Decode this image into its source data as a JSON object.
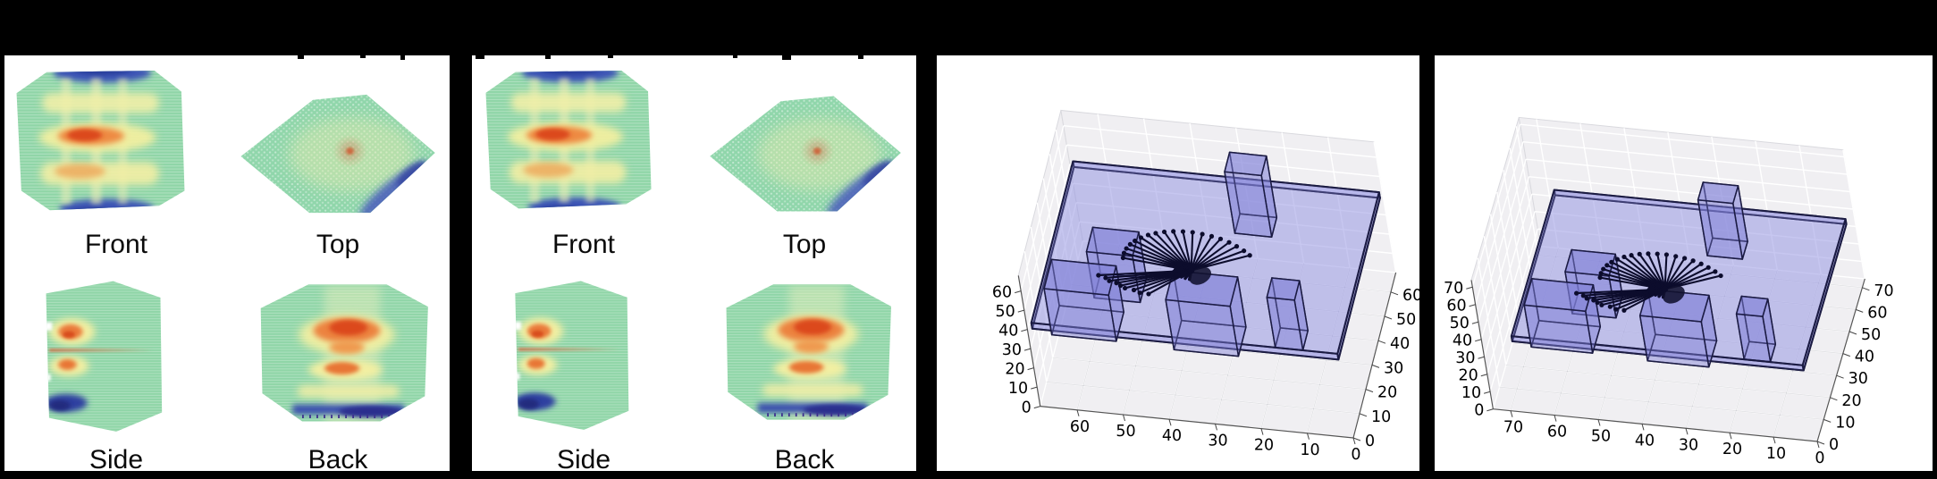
{
  "strip": {
    "background": "#000000",
    "panels": [
      {
        "id": "multiview-a",
        "kind": "orthographic-heatmap-views",
        "views": [
          {
            "label": "Front"
          },
          {
            "label": "Top"
          },
          {
            "label": "Side"
          },
          {
            "label": "Back"
          }
        ]
      },
      {
        "id": "multiview-b",
        "kind": "orthographic-heatmap-views",
        "views": [
          {
            "label": "Front"
          },
          {
            "label": "Top"
          },
          {
            "label": "Side"
          },
          {
            "label": "Back"
          }
        ]
      },
      {
        "id": "scene-a",
        "kind": "3d-room-scene"
      },
      {
        "id": "scene-b",
        "kind": "3d-room-scene"
      }
    ]
  },
  "palette": {
    "heat_base_green": "#8fd5a7",
    "heat_yellow": "#f1efa6",
    "heat_orange": "#ec8340",
    "heat_red_core": "#dc4a1e",
    "heat_blue": "#3c55b6",
    "heat_dark_blue": "#2b3f9d",
    "room_plane_fill": "#8e8ee0",
    "room_box_fill": "#7f7fd8",
    "room_edge": "#18183f",
    "pane_gray": "#f0eff2",
    "grid_white": "#ffffff",
    "ray_black": "#0c0c2c"
  },
  "chart_data": [
    {
      "type": "heatmap",
      "panel": "multiview-a",
      "views": [
        "Front",
        "Top",
        "Side",
        "Back"
      ],
      "description": "voxel point-cloud heatmap of a cuboid shown from four orthographic views; green base, yellow/orange/red hot bands, blue extremes at top and bottom edges"
    },
    {
      "type": "heatmap",
      "panel": "multiview-b",
      "views": [
        "Front",
        "Top",
        "Side",
        "Back"
      ],
      "description": "second sample of the same four-view voxel heatmap"
    },
    {
      "type": "scatter",
      "panel": "scene-a",
      "projection": "3d",
      "grid": true,
      "x_ticks": [
        60,
        50,
        40,
        30,
        20,
        10,
        0
      ],
      "y_ticks": [
        0,
        10,
        20,
        30,
        40,
        50,
        60
      ],
      "z_ticks": [
        0,
        10,
        20,
        30,
        40,
        50,
        60
      ],
      "xlim": [
        0,
        68
      ],
      "ylim": [
        0,
        68
      ],
      "zlim": [
        0,
        68
      ],
      "slab": {
        "x": [
          0.5,
          67
        ],
        "y": [
          0.5,
          67
        ],
        "z": [
          40,
          43
        ]
      },
      "boxes": [
        {
          "x": [
            22,
            30
          ],
          "y": [
            50,
            58
          ],
          "z": [
            36,
            68
          ]
        },
        {
          "x": [
            48,
            58
          ],
          "y": [
            26,
            36
          ],
          "z": [
            26,
            50
          ]
        },
        {
          "x": [
            26,
            40
          ],
          "y": [
            16,
            28
          ],
          "z": [
            16,
            42
          ]
        },
        {
          "x": [
            12,
            18
          ],
          "y": [
            18,
            26
          ],
          "z": [
            20,
            46
          ]
        },
        {
          "x": [
            52,
            66
          ],
          "y": [
            14,
            26
          ],
          "z": [
            20,
            44
          ]
        }
      ],
      "rays": {
        "origin": [
          36,
          28,
          43
        ],
        "fan_up": [
          [
            14.9,
            1.3,
            1.3
          ],
          [
            14.6,
            1.7,
            3.4
          ],
          [
            14.0,
            2.1,
            5.4
          ],
          [
            13.1,
            2.5,
            7.3
          ],
          [
            12.0,
            2.8,
            9.0
          ],
          [
            10.6,
            3.1,
            10.6
          ],
          [
            9.0,
            3.4,
            12.0
          ],
          [
            7.3,
            3.6,
            13.1
          ],
          [
            5.4,
            3.8,
            14.0
          ],
          [
            3.4,
            3.9,
            14.6
          ],
          [
            1.3,
            4.0,
            14.9
          ],
          [
            -0.8,
            4.0,
            15.0
          ],
          [
            -2.9,
            3.9,
            14.7
          ],
          [
            -4.9,
            3.8,
            14.2
          ],
          [
            -6.8,
            3.7,
            13.4
          ],
          [
            -8.6,
            3.5,
            12.3
          ],
          [
            -10.2,
            3.2,
            11.0
          ],
          [
            -11.7,
            2.9,
            9.4
          ],
          [
            -12.9,
            2.6,
            7.7
          ]
        ],
        "fan_down": [
          [
            20.7,
            0,
            -7.5
          ],
          [
            19.2,
            0,
            -8.5
          ],
          [
            18.5,
            0,
            -9.9
          ],
          [
            17.0,
            0,
            -10.6
          ],
          [
            16.2,
            0,
            -11.8
          ],
          [
            15.3,
            0,
            -12.9
          ],
          [
            13.4,
            0,
            -13.4
          ],
          [
            12.2,
            0,
            -14.6
          ],
          [
            10.3,
            0,
            -14.7
          ]
        ],
        "cluster": [
          [
            3.4,
            -1,
            0.6
          ],
          [
            3.2,
            -1,
            1.4
          ],
          [
            2.9,
            -1,
            2.0
          ],
          [
            2.5,
            -0.5,
            2.5
          ],
          [
            2.0,
            -0.5,
            2.9
          ],
          [
            1.4,
            -0.5,
            3.2
          ],
          [
            0.6,
            0,
            3.4
          ],
          [
            3.3,
            -1,
            -1.2
          ],
          [
            2.9,
            -1,
            -2.0
          ],
          [
            2.2,
            -1,
            -2.7
          ],
          [
            1.4,
            -1,
            -3.2
          ],
          [
            0.5,
            -1,
            -3.5
          ]
        ]
      }
    },
    {
      "type": "scatter",
      "panel": "scene-b",
      "projection": "3d",
      "grid": true,
      "x_ticks": [
        70,
        60,
        50,
        40,
        30,
        20,
        10,
        0
      ],
      "y_ticks": [
        0,
        10,
        20,
        30,
        40,
        50,
        60,
        70
      ],
      "z_ticks": [
        0,
        10,
        20,
        30,
        40,
        50,
        60,
        70
      ],
      "xlim": [
        0,
        74
      ],
      "ylim": [
        0,
        74
      ],
      "zlim": [
        0,
        74
      ],
      "same_scene_as": "scene-a"
    }
  ]
}
